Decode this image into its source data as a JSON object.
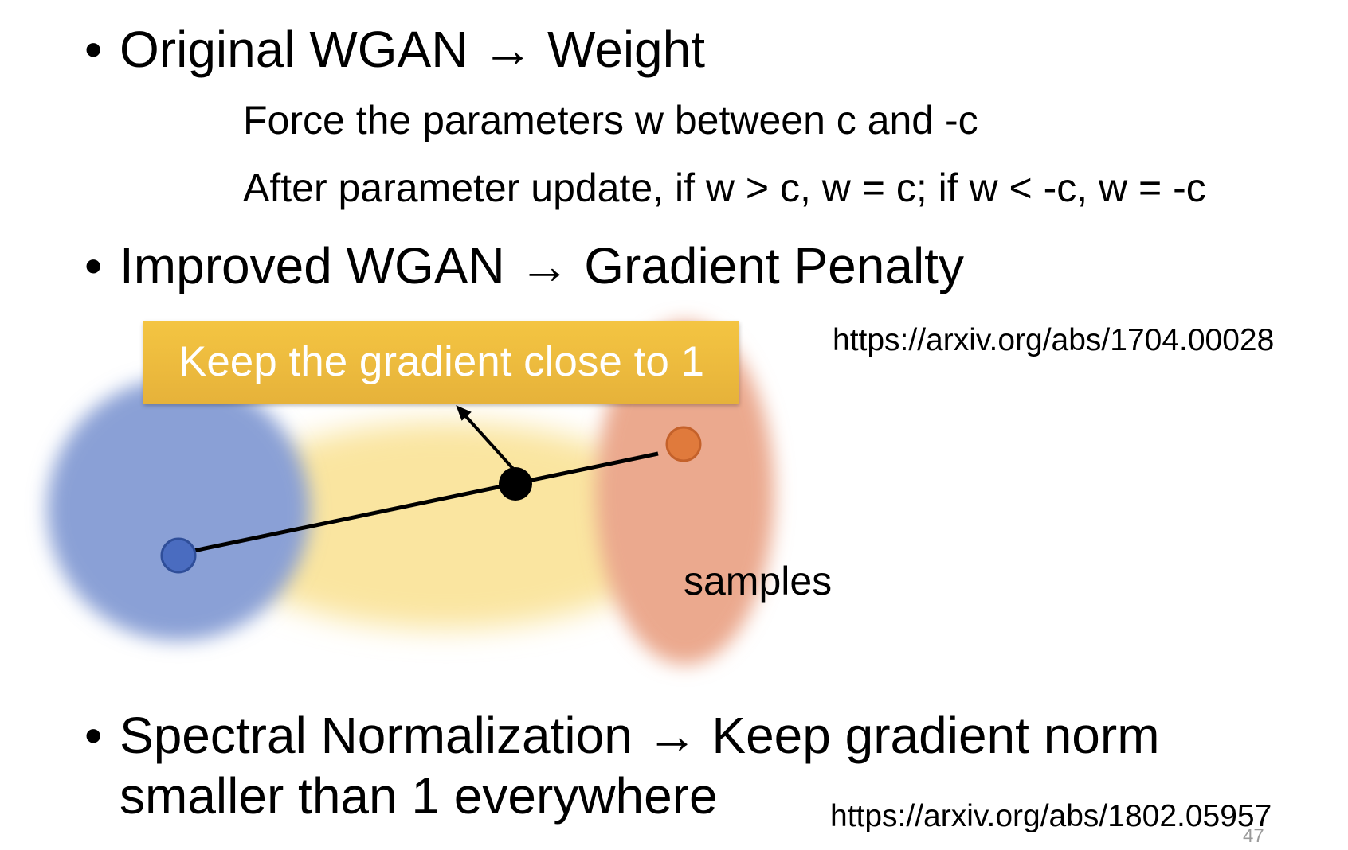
{
  "bullets": [
    {
      "text": "Original WGAN → Weight",
      "sub_items": [
        "Force the parameters w between c and -c",
        "After parameter update, if w > c, w = c; if w < -c, w = -c"
      ]
    },
    {
      "text": "Improved WGAN → Gradient Penalty"
    },
    {
      "line1": "Spectral Normalization → Keep gradient norm",
      "line2": "smaller than 1 everywhere"
    }
  ],
  "bullet_symbol": "•",
  "diagram": {
    "callout_text": "Keep the gradient close to 1",
    "samples_label": "samples",
    "colors": {
      "blue_region": "#8aa0d6",
      "yellow_region": "#fae5a0",
      "orange_region": "#eba98e",
      "blue_point": "#4a6cc0",
      "orange_point": "#e07a3c",
      "sample_point": "#000000",
      "callout": "#f0bf40"
    }
  },
  "links": {
    "improved_wgan": "https://arxiv.org/abs/1704.00028",
    "spectral_norm": "https://arxiv.org/abs/1802.05957"
  },
  "page_number": "47"
}
